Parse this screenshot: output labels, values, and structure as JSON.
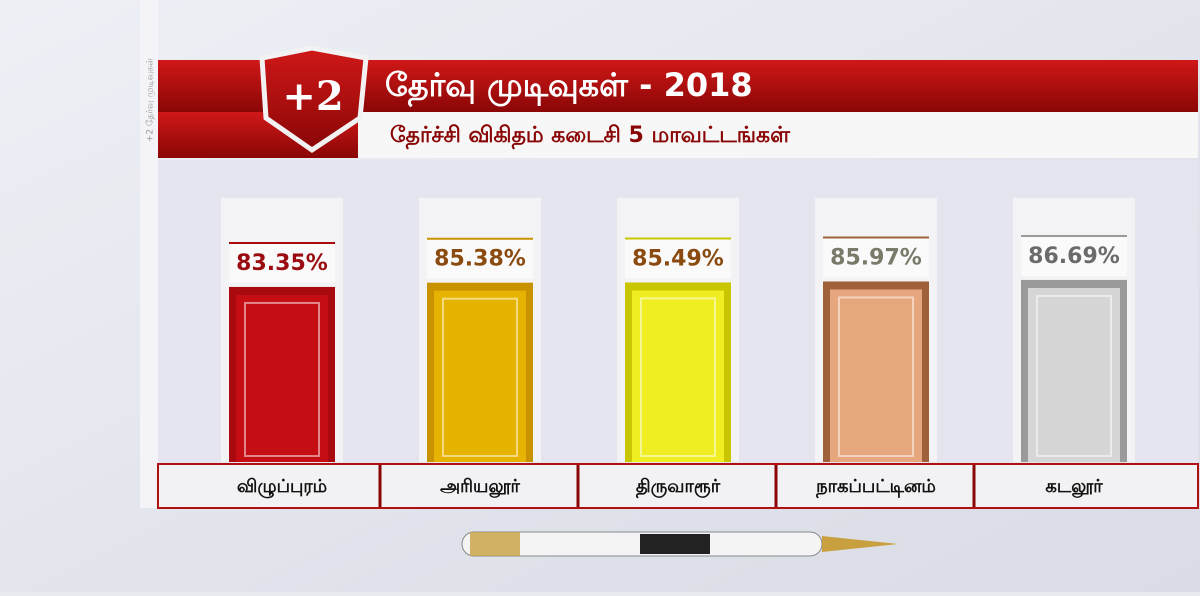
{
  "chart_data": {
    "type": "bar",
    "badge": "+2",
    "title": "தேர்வு முடிவுகள் - 2018",
    "subtitle": "தேர்ச்சி  விகிதம் கடைசி 5 மாவட்டங்கள்",
    "side_text": "+2 தேர்வு முடிவுகள்",
    "categories": [
      "விழுப்புரம்",
      "அரியலூர்",
      "திருவாரூர்",
      "நாகப்பட்டினம்",
      "கடலூர்"
    ],
    "values": [
      83.35,
      85.38,
      85.49,
      85.97,
      86.69
    ],
    "value_labels": [
      "83.35%",
      "85.38%",
      "85.49%",
      "85.97%",
      "86.69%"
    ],
    "colors": [
      "#c50d14",
      "#e6b400",
      "#eeee22",
      "#e6a67e",
      "#d6d6d6"
    ],
    "edge_colors": [
      "#a80a10",
      "#c99200",
      "#c9c600",
      "#a0603a",
      "#9a9a9a"
    ],
    "label_colors": [
      "#9a0c12",
      "#8a4a10",
      "#8a4a10",
      "#7a7a6a",
      "#6a6a6a"
    ]
  }
}
